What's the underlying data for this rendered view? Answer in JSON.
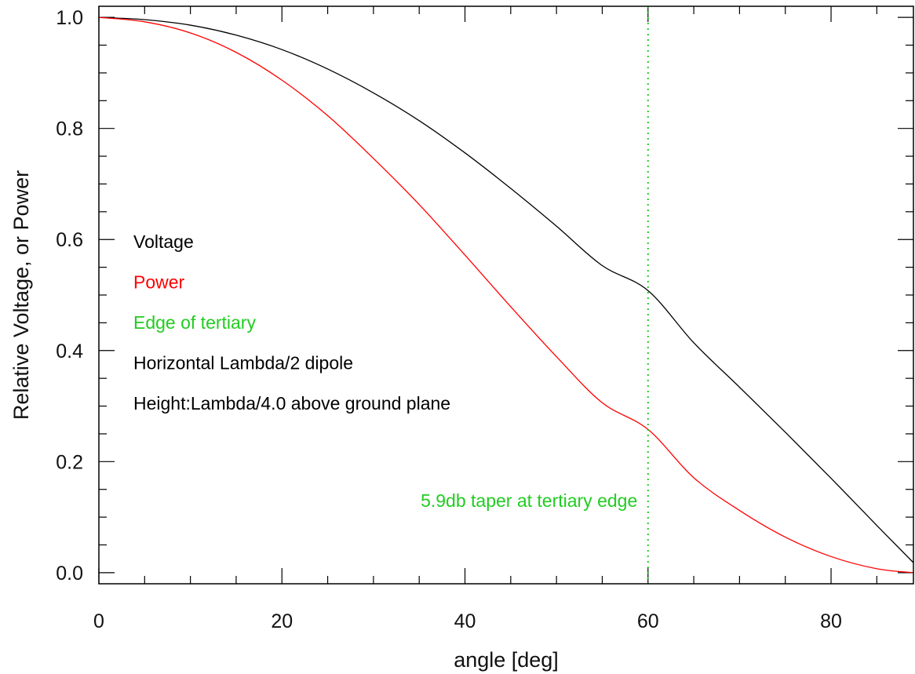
{
  "chart_data": {
    "type": "line",
    "title": "",
    "xlabel": "angle [deg]",
    "ylabel": "Relative Voltage, or Power",
    "xlim": [
      0,
      89
    ],
    "ylim": [
      -0.02,
      1.02
    ],
    "x_ticks": [
      {
        "value": 0,
        "label": "0"
      },
      {
        "value": 20,
        "label": "20"
      },
      {
        "value": 40,
        "label": "40"
      },
      {
        "value": 60,
        "label": "60"
      },
      {
        "value": 80,
        "label": "80"
      }
    ],
    "x_minor_step": 5,
    "y_ticks": [
      {
        "value": 0.0,
        "label": "0.0"
      },
      {
        "value": 0.2,
        "label": "0.2"
      },
      {
        "value": 0.4,
        "label": "0.4"
      },
      {
        "value": 0.6,
        "label": "0.6"
      },
      {
        "value": 0.8,
        "label": "0.8"
      },
      {
        "value": 1.0,
        "label": "1.0"
      }
    ],
    "y_minor_step": 0.05,
    "grid": false,
    "series": [
      {
        "name": "Voltage",
        "color": "#000000",
        "style": "solid",
        "x": [
          0,
          5,
          10,
          15,
          20,
          25,
          30,
          35,
          40,
          45,
          50,
          55,
          60,
          65,
          70,
          75,
          80,
          85,
          89
        ],
        "y": [
          1.0,
          0.996,
          0.986,
          0.968,
          0.942,
          0.907,
          0.864,
          0.814,
          0.756,
          0.692,
          0.624,
          0.553,
          0.508,
          0.414,
          0.334,
          0.253,
          0.17,
          0.085,
          0.018
        ]
      },
      {
        "name": "Power",
        "color": "#ff0000",
        "style": "solid",
        "x": [
          0,
          5,
          10,
          15,
          20,
          25,
          30,
          35,
          40,
          45,
          50,
          55,
          60,
          65,
          70,
          75,
          80,
          85,
          89
        ],
        "y": [
          1.0,
          0.992,
          0.972,
          0.937,
          0.887,
          0.823,
          0.746,
          0.663,
          0.572,
          0.479,
          0.389,
          0.306,
          0.258,
          0.171,
          0.112,
          0.064,
          0.029,
          0.007,
          0.0
        ]
      }
    ],
    "vertical_lines": [
      {
        "x": 60,
        "color": "#22cc22",
        "style": "dotted",
        "label": "Edge of tertiary"
      }
    ],
    "legend_placement": "middle-left",
    "legend": [
      {
        "text": "Voltage",
        "color": "#000000"
      },
      {
        "text": "Power",
        "color": "#ff0000"
      },
      {
        "text": "Edge of tertiary",
        "color": "#22cc22"
      },
      {
        "text": "Horizontal Lambda/2 dipole",
        "color": "#000000"
      },
      {
        "text": "Height:Lambda/4.0 above ground plane",
        "color": "#000000"
      }
    ],
    "annotations": [
      {
        "text": "5.9db taper at tertiary edge",
        "color": "#22cc22",
        "x": 47,
        "y": 0.13
      }
    ]
  }
}
